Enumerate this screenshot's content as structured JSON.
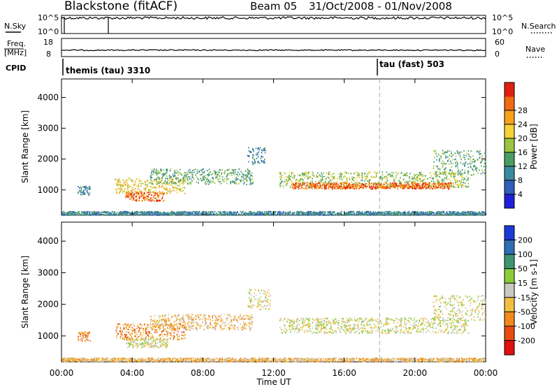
{
  "header": {
    "station": "Blackstone (fitACF)",
    "beam": "Beam 05",
    "dates": "31/Oct/2008 - 01/Nov/2008"
  },
  "strip_labels": {
    "nsky": "N.Sky",
    "nsky_ticks": [
      "10^5",
      "10^0"
    ],
    "nsearch": "N.Search",
    "nsearch_ticks": [
      "10^5",
      "10^0"
    ],
    "freq_line1": "Freq.",
    "freq_line2": "[MHz]",
    "freq_ticks": [
      "18",
      "8"
    ],
    "nave": "Nave",
    "nave_ticks": [
      "60",
      "0"
    ],
    "cpid": "CPID"
  },
  "cpid_segments": [
    {
      "label": "themis (tau) 3310",
      "start_hour": 0
    },
    {
      "label": "tau (fast) 503",
      "start_hour": 18.0
    }
  ],
  "chart_data": [
    {
      "type": "heatmap",
      "title": "Power",
      "ylabel": "Slant Range [km]",
      "xlabel": "Time UT",
      "x_ticks": [
        "00:00",
        "04:00",
        "08:00",
        "12:00",
        "16:00",
        "20:00",
        "00:00"
      ],
      "y_ticks": [
        1000,
        2000,
        3000,
        4000
      ],
      "ylim": [
        180,
        4600
      ],
      "xlim_hours": [
        0,
        24
      ],
      "colorbar_label": "Power [dB]",
      "colorbar_ticks": [
        4,
        8,
        12,
        16,
        20,
        24,
        28
      ],
      "colorbar_colors": [
        "#1f1fd8",
        "#2f5fb8",
        "#3a8aa0",
        "#4a9e63",
        "#9bc442",
        "#f6d23a",
        "#f6a21a",
        "#ef6a12",
        "#e02010"
      ],
      "scatter_bands": [
        {
          "t0": 0.9,
          "t1": 1.6,
          "r0": 850,
          "r1": 1150,
          "level": 2
        },
        {
          "t0": 3.0,
          "t1": 7.0,
          "r0": 900,
          "r1": 1400,
          "level": 5
        },
        {
          "t0": 3.6,
          "t1": 5.8,
          "r0": 650,
          "r1": 950,
          "level": 7
        },
        {
          "t0": 5.0,
          "t1": 10.8,
          "r0": 1200,
          "r1": 1700,
          "level": 3
        },
        {
          "t0": 10.5,
          "t1": 11.5,
          "r0": 1850,
          "r1": 2400,
          "level": 2
        },
        {
          "t0": 12.3,
          "t1": 23.0,
          "r0": 1100,
          "r1": 1600,
          "level": 4
        },
        {
          "t0": 13.0,
          "t1": 22.0,
          "r0": 1050,
          "r1": 1250,
          "level": 7
        },
        {
          "t0": 21.0,
          "t1": 24.0,
          "r0": 1500,
          "r1": 2300,
          "level": 3
        },
        {
          "t0": 0.0,
          "t1": 24.0,
          "r0": 200,
          "r1": 320,
          "level": 2
        }
      ]
    },
    {
      "type": "heatmap",
      "title": "Velocity",
      "ylabel": "Slant Range [km]",
      "xlabel": "Time UT",
      "x_ticks": [
        "00:00",
        "04:00",
        "08:00",
        "12:00",
        "16:00",
        "20:00",
        "00:00"
      ],
      "y_ticks": [
        1000,
        2000,
        3000,
        4000
      ],
      "ylim": [
        180,
        4600
      ],
      "xlim_hours": [
        0,
        24
      ],
      "colorbar_label": "Velocity [m s-1]",
      "colorbar_ticks": [
        200,
        100,
        50,
        15,
        -15,
        -50,
        -100,
        -200
      ],
      "colorbar_colors": [
        "#1a3ad6",
        "#2e6fb5",
        "#3e9670",
        "#8ccc3a",
        "#c9c9c0",
        "#f2c040",
        "#f08a1a",
        "#e84a10",
        "#e01010"
      ],
      "scatter_bands": [
        {
          "t0": 0.9,
          "t1": 1.6,
          "r0": 850,
          "r1": 1150,
          "level": 6
        },
        {
          "t0": 3.0,
          "t1": 7.0,
          "r0": 900,
          "r1": 1400,
          "level": 6
        },
        {
          "t0": 3.6,
          "t1": 6.0,
          "r0": 650,
          "r1": 950,
          "level": 4
        },
        {
          "t0": 5.0,
          "t1": 10.8,
          "r0": 1200,
          "r1": 1700,
          "level": 5
        },
        {
          "t0": 10.5,
          "t1": 11.8,
          "r0": 1850,
          "r1": 2500,
          "level": 4
        },
        {
          "t0": 12.3,
          "t1": 23.0,
          "r0": 1100,
          "r1": 1600,
          "level": 4
        },
        {
          "t0": 21.0,
          "t1": 24.0,
          "r0": 1500,
          "r1": 2300,
          "level": 4
        },
        {
          "t0": 0.0,
          "t1": 24.0,
          "r0": 200,
          "r1": 320,
          "level": 5
        }
      ]
    }
  ]
}
